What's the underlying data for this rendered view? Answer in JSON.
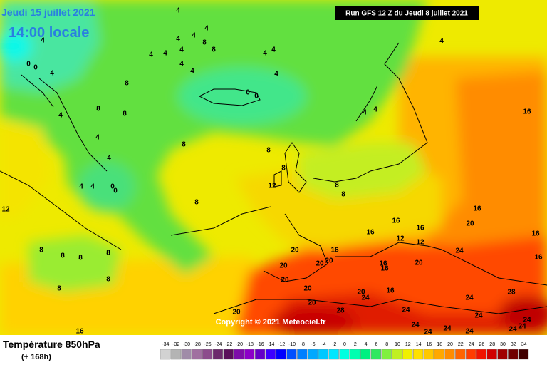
{
  "map": {
    "title_date": "Jeudi 15 juillet 2021",
    "title_time": "14:00 locale",
    "run": "Run GFS 12 Z du Jeudi 8 juillet 2021",
    "copyright": "Copyright © 2021 Meteociel.fr",
    "variable": "Température 850hPa",
    "lead": "(+ 168h)",
    "contour_labels": [
      4,
      4,
      4,
      4,
      4,
      4,
      4,
      4,
      4,
      8,
      8,
      4,
      4,
      4,
      4,
      4,
      0,
      0,
      4,
      8,
      8,
      8,
      4,
      4,
      4,
      4,
      4,
      0,
      0,
      8,
      8,
      8,
      12,
      8,
      8,
      8,
      12,
      8,
      8,
      8,
      8,
      8,
      8,
      16,
      16,
      20,
      16,
      16,
      16,
      16,
      12,
      16,
      12,
      20,
      16,
      20,
      20,
      20,
      20,
      16,
      16,
      20,
      24,
      20,
      20,
      20,
      24,
      16,
      28,
      24,
      24,
      28,
      24,
      24,
      20,
      24,
      24,
      24,
      24,
      24,
      24,
      16,
      0,
      0,
      4,
      4
    ],
    "scale": {
      "values": [
        -34,
        -32,
        -30,
        -28,
        -26,
        -24,
        -22,
        -20,
        -18,
        -16,
        -14,
        -12,
        -10,
        -8,
        -6,
        -4,
        -2,
        0,
        2,
        4,
        6,
        8,
        10,
        12,
        14,
        16,
        18,
        20,
        22,
        24,
        26,
        28,
        30,
        32,
        34
      ],
      "colors": [
        "#d2d2d2",
        "#b4b4b4",
        "#a08ca8",
        "#a070a0",
        "#8c4c8c",
        "#6c2a6c",
        "#5a0f5a",
        "#7d0da8",
        "#8c00c8",
        "#6400c8",
        "#3c00ff",
        "#0000ff",
        "#0050ff",
        "#0080ff",
        "#00a8ff",
        "#00c8ff",
        "#00e6ff",
        "#00ffe0",
        "#00ffb0",
        "#00f080",
        "#30e860",
        "#80f040",
        "#c0f020",
        "#f0f000",
        "#ffe000",
        "#ffc800",
        "#ffa800",
        "#ff8c00",
        "#ff6400",
        "#ff3c00",
        "#f01400",
        "#d00000",
        "#a00000",
        "#700000",
        "#400000"
      ]
    }
  }
}
